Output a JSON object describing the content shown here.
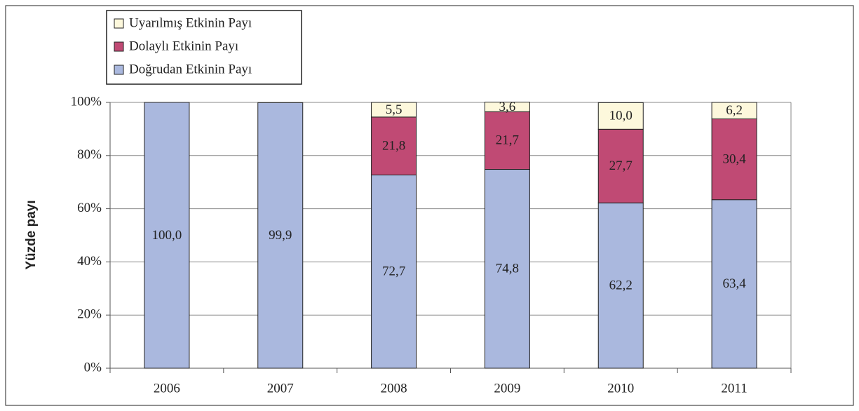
{
  "chart_data": {
    "type": "stacked-bar",
    "y_label": "Yüzde payı",
    "categories": [
      "2006",
      "2007",
      "2008",
      "2009",
      "2010",
      "2011"
    ],
    "series": [
      {
        "name": "Doğrudan Etkinin Payı",
        "color": "#aab8de",
        "values": [
          100.0,
          99.9,
          72.7,
          74.8,
          62.2,
          63.4
        ],
        "value_labels": [
          "100,0",
          "99,9",
          "72,7",
          "74,8",
          "62,2",
          "63,4"
        ]
      },
      {
        "name": "Dolaylı Etkinin Payı",
        "color": "#c04a74",
        "values": [
          null,
          null,
          21.8,
          21.7,
          27.7,
          30.4
        ],
        "value_labels": [
          null,
          null,
          "21,8",
          "21,7",
          "27,7",
          "30,4"
        ]
      },
      {
        "name": "Uyarılmış Etkinin Payı",
        "color": "#fdf8dc",
        "values": [
          null,
          null,
          5.5,
          3.6,
          10.0,
          6.2
        ],
        "value_labels": [
          null,
          null,
          "5,5",
          "3,6",
          "10,0",
          "6,2"
        ]
      }
    ],
    "ylim": [
      0,
      100
    ],
    "yticks": [
      {
        "value": 0,
        "label": "0%"
      },
      {
        "value": 20,
        "label": "20%"
      },
      {
        "value": 40,
        "label": "40%"
      },
      {
        "value": 60,
        "label": "60%"
      },
      {
        "value": 80,
        "label": "80%"
      },
      {
        "value": 100,
        "label": "100%"
      }
    ],
    "grid": true,
    "legend": "top-left"
  }
}
